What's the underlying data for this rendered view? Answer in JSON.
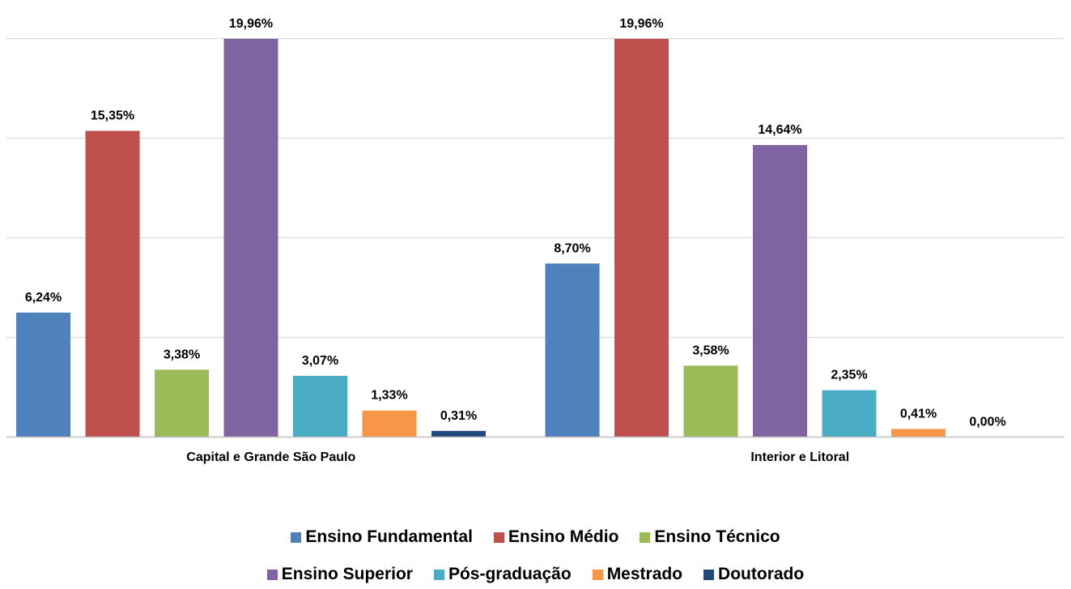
{
  "chart_data": {
    "type": "bar",
    "categories": [
      "Capital e Grande São Paulo",
      "Interior e Litoral"
    ],
    "series": [
      {
        "name": "Ensino Fundamental",
        "color": "#4F81BD",
        "values": [
          6.24,
          8.7
        ],
        "labels": [
          "6,24%",
          "8,70%"
        ]
      },
      {
        "name": "Ensino Médio",
        "color": "#C0504D",
        "values": [
          15.35,
          19.96
        ],
        "labels": [
          "15,35%",
          "19,96%"
        ]
      },
      {
        "name": "Ensino Técnico",
        "color": "#9BBB59",
        "values": [
          3.38,
          3.58
        ],
        "labels": [
          "3,38%",
          "3,58%"
        ]
      },
      {
        "name": "Ensino Superior",
        "color": "#8064A2",
        "values": [
          19.96,
          14.64
        ],
        "labels": [
          "19,96%",
          "14,64%"
        ]
      },
      {
        "name": "Pós-graduação",
        "color": "#4BACC6",
        "values": [
          3.07,
          2.35
        ],
        "labels": [
          "3,07%",
          "2,35%"
        ]
      },
      {
        "name": "Mestrado",
        "color": "#F79646",
        "values": [
          1.33,
          0.41
        ],
        "labels": [
          "1,33%",
          "0,41%"
        ]
      },
      {
        "name": "Doutorado",
        "color": "#1F497D",
        "values": [
          0.31,
          0.0
        ],
        "labels": [
          "0,31%",
          "0,00%"
        ]
      }
    ],
    "ylim": [
      0,
      20
    ],
    "grid": true,
    "legend": "bottom"
  },
  "legend": {
    "row1": [
      "Ensino Fundamental",
      "Ensino Médio",
      "Ensino Técnico"
    ],
    "row2": [
      "Ensino Superior",
      "Pós-graduação",
      "Mestrado",
      "Doutorado"
    ]
  }
}
